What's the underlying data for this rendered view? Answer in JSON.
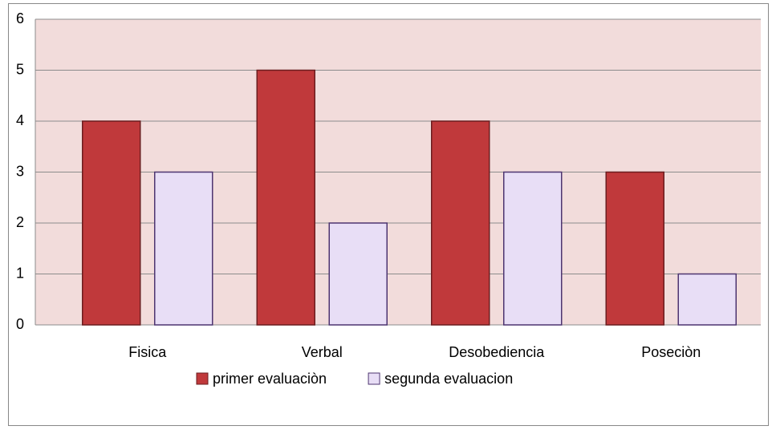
{
  "chart_data": {
    "type": "bar",
    "categories": [
      "Fisica",
      "Verbal",
      "Desobediencia",
      "Poseciòn"
    ],
    "series": [
      {
        "name": "primer evaluaciòn",
        "color": "#c0393b",
        "values": [
          4,
          5,
          4,
          3
        ]
      },
      {
        "name": "segunda evaluacion",
        "color": "#e8def6",
        "values": [
          3,
          2,
          3,
          1
        ]
      }
    ],
    "ylim": [
      0,
      6
    ],
    "yticks": [
      0,
      1,
      2,
      3,
      4,
      5,
      6
    ],
    "grid": true,
    "legend": "bottom"
  }
}
